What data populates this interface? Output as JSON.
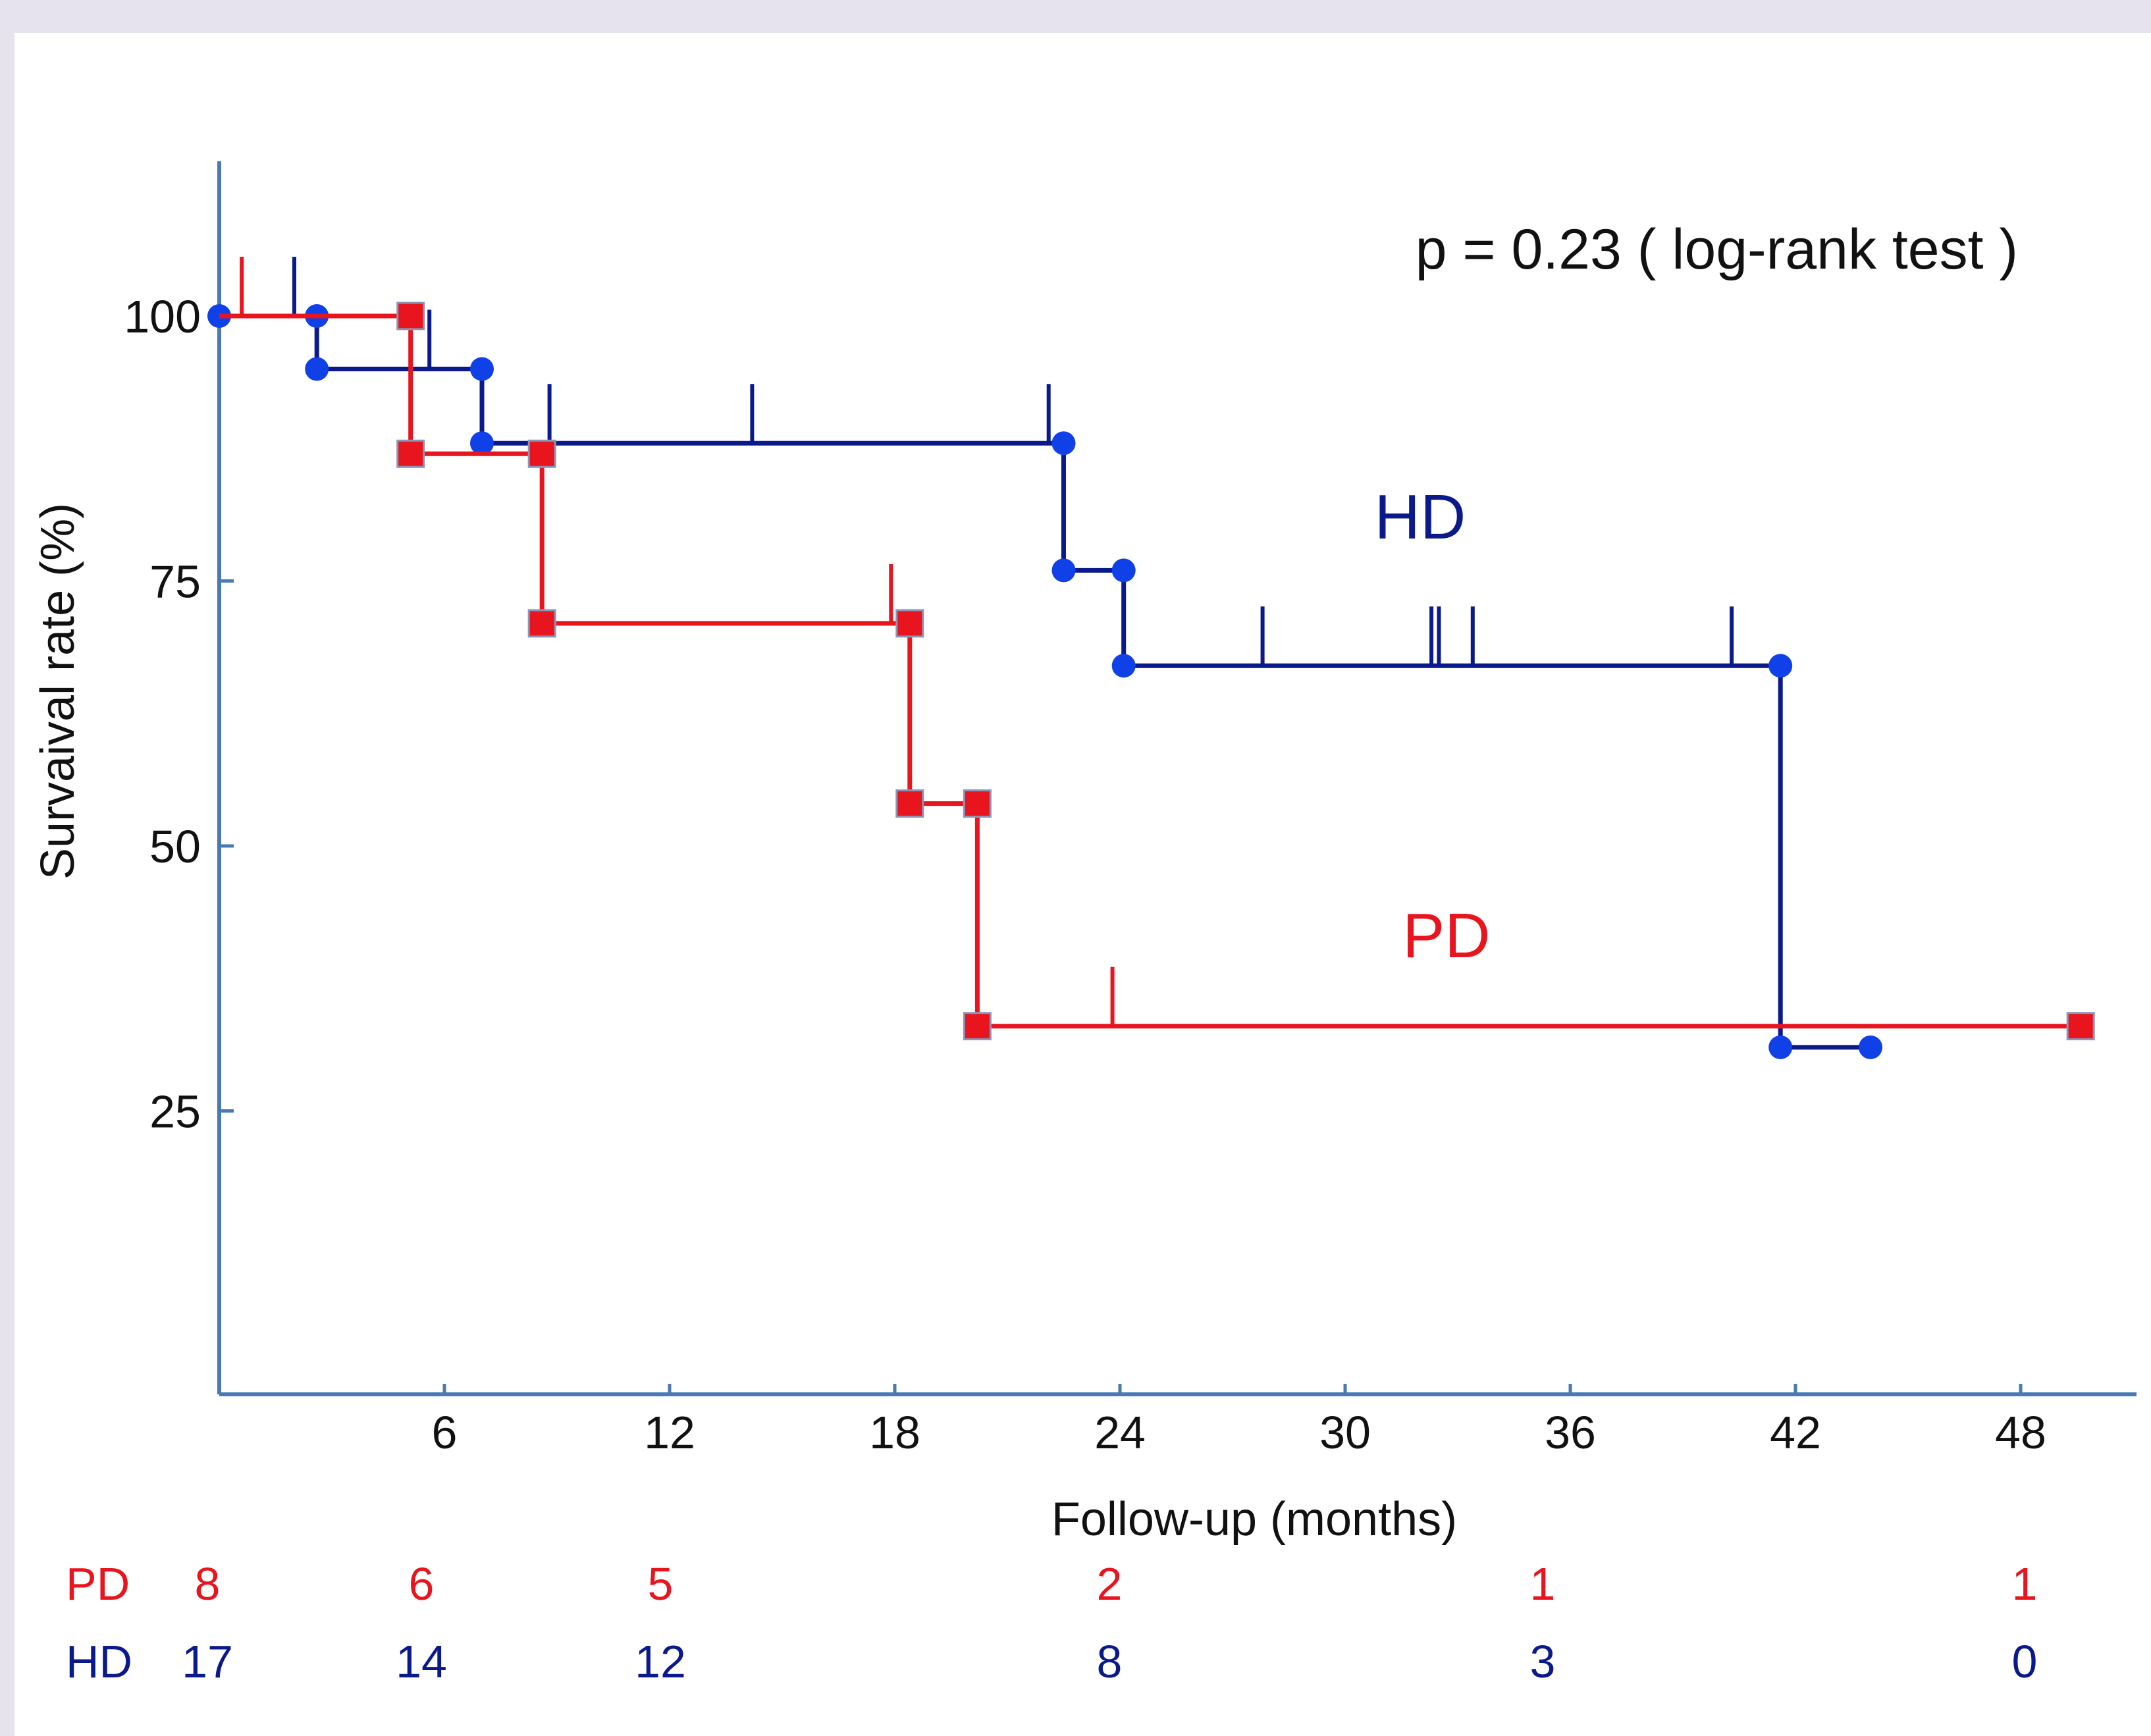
{
  "chart_data": {
    "type": "line",
    "subtype": "kaplan-meier step",
    "title": "",
    "xlabel": "Follow-up (months)",
    "ylabel": "Survaival rate (%)",
    "xlim": [
      0,
      50
    ],
    "ylim": [
      0,
      115
    ],
    "x_ticks": [
      "6",
      "12",
      "18",
      "24",
      "30",
      "36",
      "42",
      "48"
    ],
    "y_ticks": [
      "25",
      "50",
      "75",
      "100"
    ],
    "annotation": "p = 0.23 ( log-rank test )",
    "grid": false,
    "series": [
      {
        "name": "HD",
        "color": "#0a1a8a",
        "marker_color": "#1040e8",
        "marker": "circle",
        "steps": [
          {
            "x": 0,
            "y": 100
          },
          {
            "x": 2.6,
            "y": 100
          },
          {
            "x": 2.6,
            "y": 95
          },
          {
            "x": 7.0,
            "y": 95
          },
          {
            "x": 7.0,
            "y": 88
          },
          {
            "x": 22.5,
            "y": 88
          },
          {
            "x": 22.5,
            "y": 76
          },
          {
            "x": 24.1,
            "y": 76
          },
          {
            "x": 24.1,
            "y": 67
          },
          {
            "x": 41.6,
            "y": 67
          },
          {
            "x": 41.6,
            "y": 31
          },
          {
            "x": 44.0,
            "y": 31
          }
        ],
        "events": [
          {
            "x": 0.0,
            "y": 100
          },
          {
            "x": 2.6,
            "y": 100
          },
          {
            "x": 2.6,
            "y": 95
          },
          {
            "x": 7.0,
            "y": 95
          },
          {
            "x": 7.0,
            "y": 88
          },
          {
            "x": 22.5,
            "y": 88
          },
          {
            "x": 22.5,
            "y": 76
          },
          {
            "x": 24.1,
            "y": 76
          },
          {
            "x": 24.1,
            "y": 67
          },
          {
            "x": 41.6,
            "y": 67
          },
          {
            "x": 41.6,
            "y": 31
          },
          {
            "x": 44.0,
            "y": 31
          }
        ],
        "censored": [
          {
            "x": 2.0,
            "y": 100
          },
          {
            "x": 5.6,
            "y": 95
          },
          {
            "x": 8.8,
            "y": 88
          },
          {
            "x": 14.2,
            "y": 88
          },
          {
            "x": 22.1,
            "y": 88
          },
          {
            "x": 27.8,
            "y": 67
          },
          {
            "x": 32.3,
            "y": 67
          },
          {
            "x": 32.5,
            "y": 67
          },
          {
            "x": 33.4,
            "y": 67
          },
          {
            "x": 40.3,
            "y": 67
          }
        ]
      },
      {
        "name": "PD",
        "color": "#e8141e",
        "marker_color": "#e8141e",
        "marker": "square",
        "steps": [
          {
            "x": 0,
            "y": 100
          },
          {
            "x": 5.1,
            "y": 100
          },
          {
            "x": 5.1,
            "y": 87
          },
          {
            "x": 8.6,
            "y": 87
          },
          {
            "x": 8.6,
            "y": 71
          },
          {
            "x": 18.4,
            "y": 71
          },
          {
            "x": 18.4,
            "y": 54
          },
          {
            "x": 20.2,
            "y": 54
          },
          {
            "x": 20.2,
            "y": 33
          },
          {
            "x": 49.6,
            "y": 33
          }
        ],
        "events": [
          {
            "x": 5.1,
            "y": 100
          },
          {
            "x": 5.1,
            "y": 87
          },
          {
            "x": 8.6,
            "y": 87
          },
          {
            "x": 8.6,
            "y": 71
          },
          {
            "x": 18.4,
            "y": 71
          },
          {
            "x": 18.4,
            "y": 54
          },
          {
            "x": 20.2,
            "y": 54
          },
          {
            "x": 20.2,
            "y": 33
          },
          {
            "x": 49.6,
            "y": 33
          }
        ],
        "censored": [
          {
            "x": 0.6,
            "y": 100
          },
          {
            "x": 17.9,
            "y": 71
          },
          {
            "x": 23.8,
            "y": 33
          }
        ]
      }
    ],
    "series_labels": [
      {
        "text": "HD",
        "x": 32.0,
        "y": 79
      },
      {
        "text": "PD",
        "x": 32.7,
        "y": 39.5
      }
    ]
  },
  "risk_table": {
    "columns_x": [
      0,
      6,
      12,
      24,
      36,
      48
    ],
    "rows": [
      {
        "label": "PD",
        "color": "#e8141e",
        "values": [
          "8",
          "6",
          "5",
          "2",
          "1",
          "1"
        ]
      },
      {
        "label": "HD",
        "color": "#0a1a8a",
        "values": [
          "17",
          "14",
          "12",
          "8",
          "3",
          "0"
        ]
      }
    ]
  }
}
